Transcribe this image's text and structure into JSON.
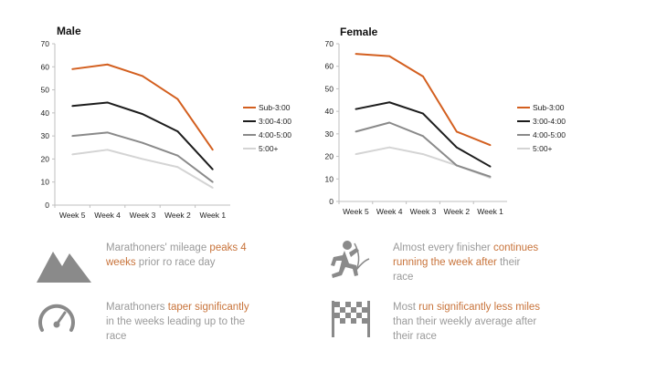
{
  "colors": {
    "sub3": "#d35f1f",
    "s3to4": "#1c1c1c",
    "s4to5": "#8a8a8a",
    "s5plus": "#d4d4d4",
    "axis": "#bfbfbf",
    "highlight": "#c8733a",
    "text_muted": "#9a9a9a"
  },
  "chart_data": [
    {
      "type": "line",
      "title": "Male",
      "categories": [
        "Week 5",
        "Week 4",
        "Week 3",
        "Week 2",
        "Week 1"
      ],
      "ylim": [
        0,
        70
      ],
      "yticks": [
        0,
        10,
        20,
        30,
        40,
        50,
        60,
        70
      ],
      "xlabel": "",
      "ylabel": "",
      "grid": false,
      "legend_position": "right",
      "series": [
        {
          "name": "Sub-3:00",
          "values": [
            59,
            61,
            56,
            46,
            24
          ]
        },
        {
          "name": "3:00-4:00",
          "values": [
            43,
            44.5,
            39.5,
            32,
            15.5
          ]
        },
        {
          "name": "4:00-5:00",
          "values": [
            30,
            31.5,
            27,
            21.5,
            10
          ]
        },
        {
          "name": "5:00+",
          "values": [
            22,
            24,
            20,
            16.5,
            7.5
          ]
        }
      ]
    },
    {
      "type": "line",
      "title": "Female",
      "categories": [
        "Week 5",
        "Week 4",
        "Week 3",
        "Week 2",
        "Week 1"
      ],
      "ylim": [
        0,
        70
      ],
      "yticks": [
        0,
        10,
        20,
        30,
        40,
        50,
        60,
        70
      ],
      "xlabel": "",
      "ylabel": "",
      "grid": false,
      "legend_position": "right",
      "series": [
        {
          "name": "Sub-3:00",
          "values": [
            65.5,
            64.5,
            55.5,
            31,
            25
          ]
        },
        {
          "name": "3:00-4:00",
          "values": [
            41,
            44,
            39,
            24,
            15.5
          ]
        },
        {
          "name": "4:00-5:00",
          "values": [
            31,
            35,
            29,
            16,
            11
          ]
        },
        {
          "name": "5:00+",
          "values": [
            21,
            24,
            21,
            16,
            10.5
          ]
        }
      ]
    }
  ],
  "insights": [
    {
      "icon": "mountain-icon",
      "parts": [
        {
          "text": "Marathoners' mileage ",
          "hl": false
        },
        {
          "text": "peaks 4",
          "hl": true
        },
        {
          "text": "\n",
          "hl": false
        },
        {
          "text": "weeks",
          "hl": true
        },
        {
          "text": " prior ro race day",
          "hl": false
        }
      ]
    },
    {
      "icon": "runner-icon",
      "parts": [
        {
          "text": "Almost every finisher ",
          "hl": false
        },
        {
          "text": "continues",
          "hl": true
        },
        {
          "text": "\n",
          "hl": false
        },
        {
          "text": "running the week after",
          "hl": true
        },
        {
          "text": " their",
          "hl": false
        },
        {
          "text": "\n",
          "hl": false
        },
        {
          "text": "race",
          "hl": false
        }
      ]
    },
    {
      "icon": "speedometer-icon",
      "parts": [
        {
          "text": "Marathoners ",
          "hl": false
        },
        {
          "text": "taper significantly",
          "hl": true
        },
        {
          "text": "\n",
          "hl": false
        },
        {
          "text": "in the weeks leading up to the",
          "hl": false
        },
        {
          "text": "\n",
          "hl": false
        },
        {
          "text": "race",
          "hl": false
        }
      ]
    },
    {
      "icon": "checkered-flag-icon",
      "parts": [
        {
          "text": "Most ",
          "hl": false
        },
        {
          "text": "run significantly less miles",
          "hl": true
        },
        {
          "text": "\n",
          "hl": false
        },
        {
          "text": "than their weekly average after",
          "hl": false
        },
        {
          "text": "\n",
          "hl": false
        },
        {
          "text": "their race",
          "hl": false
        }
      ]
    }
  ]
}
